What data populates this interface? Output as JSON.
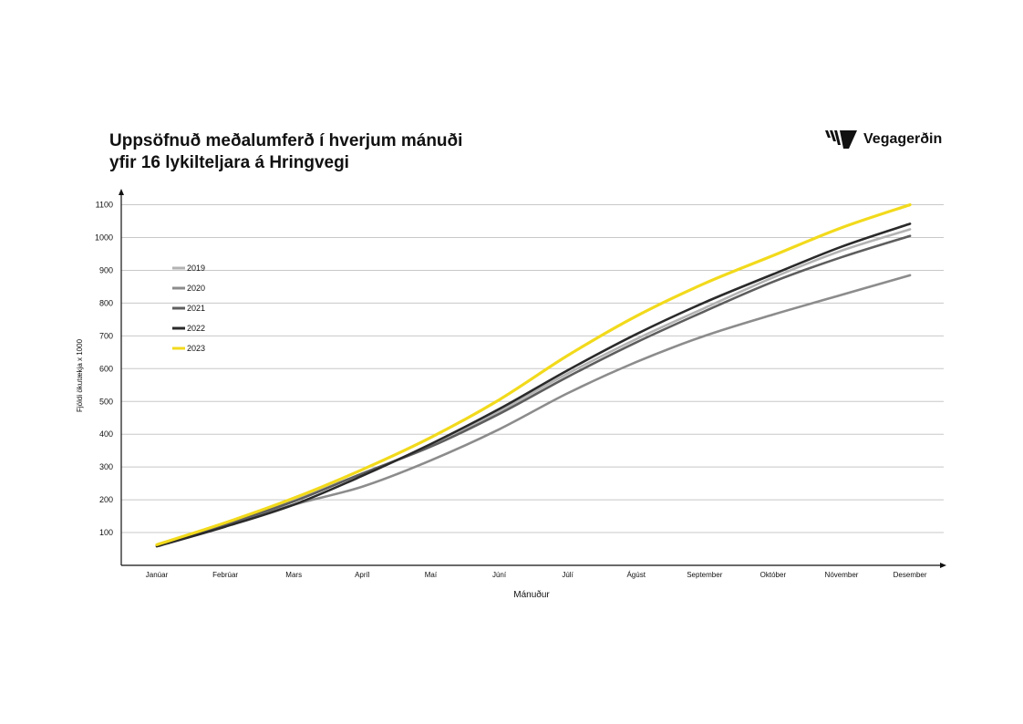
{
  "title_line1": "Uppsöfnuð meðalumferð í hverjum mánuði",
  "title_line2": "yfir 16 lykilteljara á Hringvegi",
  "logo": {
    "text": "Vegagerðin",
    "icon": "vegagerdin-stripes-logo"
  },
  "chart_data": {
    "type": "line",
    "xlabel": "Mánuður",
    "ylabel": "Fjöldi ökutækja x 1000",
    "categories": [
      "Janúar",
      "Febrúar",
      "Mars",
      "Apríl",
      "Maí",
      "Júní",
      "Júlí",
      "Ágúst",
      "September",
      "Október",
      "Nóvember",
      "Desember"
    ],
    "yticks": [
      100,
      200,
      300,
      400,
      500,
      600,
      700,
      800,
      900,
      1000,
      1100
    ],
    "ylim": [
      0,
      1100
    ],
    "grid": true,
    "legend_position": "top-left",
    "series": [
      {
        "name": "2019",
        "color": "#b3b3b3",
        "values": [
          62,
          128,
          200,
          280,
          365,
          470,
          585,
          690,
          785,
          878,
          960,
          1025
        ]
      },
      {
        "name": "2020",
        "color": "#8c8c8c",
        "values": [
          60,
          120,
          185,
          240,
          320,
          415,
          525,
          620,
          700,
          765,
          825,
          885
        ]
      },
      {
        "name": "2021",
        "color": "#5e5e5e",
        "values": [
          60,
          125,
          195,
          280,
          362,
          462,
          575,
          680,
          775,
          865,
          940,
          1005
        ]
      },
      {
        "name": "2022",
        "color": "#2a2a2a",
        "values": [
          58,
          118,
          185,
          273,
          370,
          477,
          595,
          705,
          802,
          888,
          972,
          1042
        ]
      },
      {
        "name": "2023",
        "color": "#f2da1c",
        "values": [
          63,
          130,
          205,
          292,
          390,
          505,
          640,
          760,
          860,
          945,
          1030,
          1100
        ]
      }
    ]
  }
}
